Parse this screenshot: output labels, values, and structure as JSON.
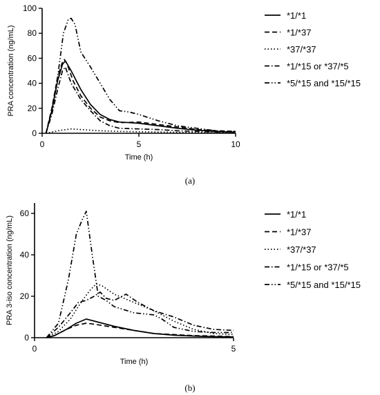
{
  "chart_data": [
    {
      "type": "line",
      "caption": "(a)",
      "xlabel": "Time (h)",
      "ylabel": "PRA concentration (ng/mL)",
      "xlim": [
        0,
        10
      ],
      "ylim": [
        0,
        100
      ],
      "xticks": [
        0,
        5,
        10
      ],
      "yticks": [
        0,
        20,
        40,
        60,
        80,
        100
      ],
      "grid": false,
      "legend_position": "right",
      "series": [
        {
          "name": "*1/*1",
          "dash": "solid",
          "points": [
            [
              0.2,
              0
            ],
            [
              0.5,
              18
            ],
            [
              0.8,
              42
            ],
            [
              1.05,
              55
            ],
            [
              1.2,
              58
            ],
            [
              1.5,
              50
            ],
            [
              2,
              35
            ],
            [
              2.5,
              23
            ],
            [
              3,
              15
            ],
            [
              3.5,
              11
            ],
            [
              4,
              9
            ],
            [
              5,
              8
            ],
            [
              6,
              6
            ],
            [
              7,
              4
            ],
            [
              8,
              2.5
            ],
            [
              9,
              1.5
            ],
            [
              10,
              0.8
            ]
          ]
        },
        {
          "name": "*1/*37",
          "dash": "dashed",
          "points": [
            [
              0.2,
              0
            ],
            [
              0.5,
              20
            ],
            [
              0.8,
              45
            ],
            [
              1.05,
              57
            ],
            [
              1.15,
              59
            ],
            [
              1.3,
              55
            ],
            [
              1.6,
              42
            ],
            [
              2,
              30
            ],
            [
              2.5,
              20
            ],
            [
              3,
              13
            ],
            [
              3.5,
              10
            ],
            [
              4,
              8.5
            ],
            [
              5,
              9
            ],
            [
              6,
              7
            ],
            [
              7,
              5
            ],
            [
              8,
              3
            ],
            [
              9,
              2
            ],
            [
              10,
              1.5
            ]
          ]
        },
        {
          "name": "*37/*37",
          "dash": "dotted",
          "points": [
            [
              0.2,
              0
            ],
            [
              0.5,
              1
            ],
            [
              1,
              2.5
            ],
            [
              1.5,
              3.5
            ],
            [
              2,
              3
            ],
            [
              3,
              2
            ],
            [
              4,
              1.5
            ],
            [
              5,
              1.2
            ],
            [
              6,
              1
            ],
            [
              7,
              0.8
            ],
            [
              8,
              0.6
            ],
            [
              9,
              0.5
            ],
            [
              10,
              0.4
            ]
          ]
        },
        {
          "name": "*1/*15 or *37/*5",
          "dash": "dashdot",
          "points": [
            [
              0.2,
              0
            ],
            [
              0.5,
              15
            ],
            [
              0.8,
              35
            ],
            [
              1.05,
              50
            ],
            [
              1.2,
              53
            ],
            [
              1.5,
              40
            ],
            [
              2,
              27
            ],
            [
              2.5,
              18
            ],
            [
              3,
              10
            ],
            [
              3.5,
              6
            ],
            [
              4,
              4
            ],
            [
              5,
              3.5
            ],
            [
              6,
              3
            ],
            [
              7,
              2
            ],
            [
              8,
              1.5
            ],
            [
              9,
              1
            ],
            [
              10,
              1
            ]
          ]
        },
        {
          "name": "*5/*15 and *15/*15",
          "dash": "dashdotdot",
          "points": [
            [
              0.2,
              0
            ],
            [
              0.5,
              18
            ],
            [
              0.8,
              45
            ],
            [
              1.1,
              80
            ],
            [
              1.35,
              91
            ],
            [
              1.5,
              92
            ],
            [
              1.7,
              87
            ],
            [
              2,
              65
            ],
            [
              2.5,
              53
            ],
            [
              3,
              40
            ],
            [
              3.5,
              27
            ],
            [
              4,
              18
            ],
            [
              4.5,
              17
            ],
            [
              5,
              15
            ],
            [
              6,
              10
            ],
            [
              7,
              6
            ],
            [
              8,
              4
            ],
            [
              9,
              2
            ],
            [
              10,
              1.5
            ]
          ]
        }
      ]
    },
    {
      "type": "line",
      "caption": "(b)",
      "xlabel": "Time (h)",
      "ylabel": "PRA 3-iso concentration (ng/mL)",
      "xlim": [
        0,
        5
      ],
      "ylim": [
        0,
        65
      ],
      "xticks": [
        0,
        5
      ],
      "yticks": [
        0,
        20,
        40,
        60
      ],
      "grid": false,
      "legend_position": "right",
      "series": [
        {
          "name": "*1/*1",
          "dash": "solid",
          "points": [
            [
              0.3,
              0
            ],
            [
              0.5,
              1
            ],
            [
              0.8,
              4
            ],
            [
              1.05,
              7
            ],
            [
              1.3,
              9
            ],
            [
              1.5,
              8
            ],
            [
              2,
              5.5
            ],
            [
              2.5,
              3.5
            ],
            [
              3,
              2
            ],
            [
              3.5,
              1.2
            ],
            [
              4,
              0.8
            ],
            [
              4.5,
              0.5
            ],
            [
              5,
              0.4
            ]
          ]
        },
        {
          "name": "*1/*37",
          "dash": "dashed",
          "points": [
            [
              0.3,
              0
            ],
            [
              0.5,
              1
            ],
            [
              0.8,
              4
            ],
            [
              1.05,
              6
            ],
            [
              1.3,
              7
            ],
            [
              1.5,
              6.5
            ],
            [
              2,
              5
            ],
            [
              2.5,
              3.5
            ],
            [
              3,
              2
            ],
            [
              3.5,
              1.5
            ],
            [
              4,
              1
            ],
            [
              4.5,
              0.8
            ],
            [
              5,
              0.5
            ]
          ]
        },
        {
          "name": "*37/*37",
          "dash": "dotted",
          "points": [
            [
              0.3,
              0
            ],
            [
              0.6,
              3
            ],
            [
              0.9,
              9
            ],
            [
              1.2,
              18
            ],
            [
              1.4,
              23
            ],
            [
              1.55,
              26
            ],
            [
              1.7,
              25
            ],
            [
              2,
              21
            ],
            [
              2.5,
              17
            ],
            [
              3,
              13
            ],
            [
              3.5,
              8
            ],
            [
              4,
              4
            ],
            [
              4.5,
              2
            ],
            [
              5,
              1.5
            ]
          ]
        },
        {
          "name": "*1/*15 or *37/*5",
          "dash": "dashdot",
          "points": [
            [
              0.3,
              0
            ],
            [
              0.6,
              5
            ],
            [
              0.9,
              12
            ],
            [
              1.1,
              17
            ],
            [
              1.3,
              18
            ],
            [
              1.5,
              20
            ],
            [
              1.65,
              22
            ],
            [
              1.8,
              19
            ],
            [
              2,
              18
            ],
            [
              2.3,
              21
            ],
            [
              2.6,
              17
            ],
            [
              3,
              13
            ],
            [
              3.5,
              10
            ],
            [
              4,
              6
            ],
            [
              4.5,
              4
            ],
            [
              5,
              3.5
            ]
          ]
        },
        {
          "name": "*5/*15 and *15/*15",
          "dash": "dashdotdot",
          "points": [
            [
              0.3,
              0
            ],
            [
              0.6,
              7
            ],
            [
              0.85,
              28
            ],
            [
              1.05,
              50
            ],
            [
              1.2,
              57
            ],
            [
              1.3,
              61
            ],
            [
              1.45,
              40
            ],
            [
              1.6,
              20
            ],
            [
              1.8,
              18
            ],
            [
              2,
              15
            ],
            [
              2.5,
              12
            ],
            [
              3,
              11
            ],
            [
              3.2,
              9
            ],
            [
              3.5,
              5
            ],
            [
              4,
              3
            ],
            [
              4.5,
              2.5
            ],
            [
              5,
              2.5
            ]
          ]
        }
      ]
    }
  ]
}
